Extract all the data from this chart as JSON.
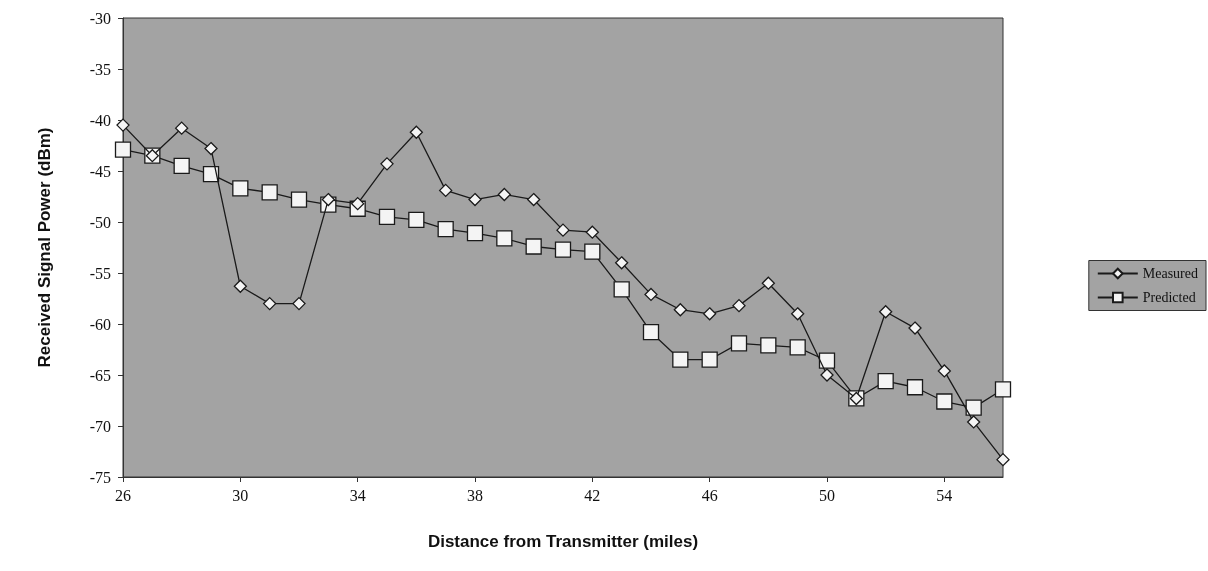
{
  "chart_data": {
    "type": "line",
    "xlabel": "Distance from Transmitter (miles)",
    "ylabel": "Received Signal Power (dBm)",
    "x": [
      26,
      27,
      28,
      29,
      30,
      31,
      32,
      33,
      34,
      35,
      36,
      37,
      38,
      39,
      40,
      41,
      42,
      43,
      44,
      45,
      46,
      47,
      48,
      49,
      50,
      51,
      52,
      53,
      54,
      55,
      56
    ],
    "series": [
      {
        "name": "Measured",
        "color": "#1a1a1a",
        "marker": "diamond",
        "values": [
          -40.5,
          -43.5,
          -40.8,
          -42.8,
          -56.3,
          -58,
          -58,
          -47.8,
          -48.2,
          -44.3,
          -41.2,
          -46.9,
          -47.8,
          -47.3,
          -47.8,
          -50.8,
          -51,
          -54,
          -57.1,
          -58.6,
          -59,
          -58.2,
          -56,
          -59,
          -65,
          -67.3,
          -58.8,
          -60.4,
          -64.6,
          -69.6,
          -73.3
        ]
      },
      {
        "name": "Predicted",
        "color": "#1a1a1a",
        "marker": "square",
        "values": [
          -42.9,
          -43.5,
          -44.5,
          -45.3,
          -46.7,
          -47.1,
          -47.8,
          -48.3,
          -48.7,
          -49.5,
          -49.8,
          -50.7,
          -51.1,
          -51.6,
          -52.4,
          -52.7,
          -52.9,
          -56.6,
          -60.8,
          -63.5,
          -63.5,
          -61.9,
          -62.1,
          -62.3,
          -63.6,
          -67.3,
          -65.6,
          -66.2,
          -67.6,
          -68.2,
          -66.4
        ]
      }
    ],
    "xlim": [
      26,
      56
    ],
    "xticks": [
      26,
      30,
      34,
      38,
      42,
      46,
      50,
      54
    ],
    "ylim": [
      -75,
      -30
    ],
    "yticks": [
      -75,
      -70,
      -65,
      -60,
      -55,
      -50,
      -45,
      -40,
      -35,
      -30
    ],
    "grid": false,
    "legend": "right",
    "line_style": "solid"
  }
}
